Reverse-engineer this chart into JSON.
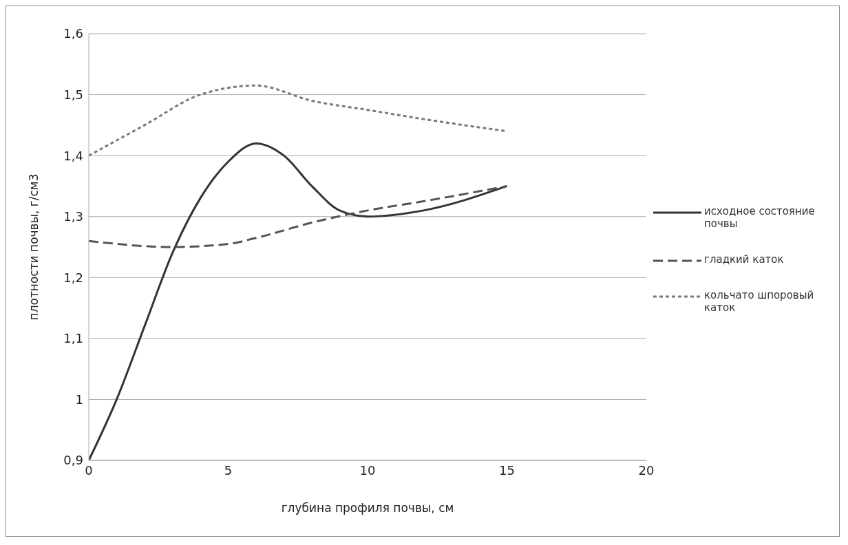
{
  "chart_data": {
    "type": "line",
    "xlabel": "глубина профиля почвы, см",
    "ylabel": "плотности почвы, г/см3",
    "xlim": [
      0,
      20
    ],
    "xticks": [
      0,
      5,
      10,
      15,
      20
    ],
    "ylim": [
      0.9,
      1.6
    ],
    "yticks": [
      {
        "value": 0.9,
        "label": "0,9"
      },
      {
        "value": 1,
        "label": "1"
      },
      {
        "value": 1.1,
        "label": "1,1"
      },
      {
        "value": 1.2,
        "label": "1,2"
      },
      {
        "value": 1.3,
        "label": "1,3"
      },
      {
        "value": 1.4,
        "label": "1,4"
      },
      {
        "value": 1.5,
        "label": "1,5"
      },
      {
        "value": 1.6,
        "label": "1,6"
      }
    ],
    "grid": "y",
    "legend": "right",
    "marker": "none",
    "series": [
      {
        "name": "исходное состояние почвы",
        "color": "#333333",
        "line_style": "solid",
        "x": [
          0,
          1,
          2,
          3,
          4,
          5,
          6,
          7,
          8,
          9,
          10,
          12,
          15
        ],
        "values": [
          0.9,
          1.0,
          1.12,
          1.24,
          1.33,
          1.39,
          1.42,
          1.4,
          1.35,
          1.31,
          1.3,
          1.31,
          1.35
        ]
      },
      {
        "name": "гладкий каток",
        "color": "#555555",
        "line_style": "dashed",
        "x": [
          0,
          3,
          5,
          6,
          8,
          10,
          12,
          15
        ],
        "values": [
          1.26,
          1.25,
          1.255,
          1.265,
          1.29,
          1.31,
          1.325,
          1.35
        ]
      },
      {
        "name": "кольчато шпоровый каток",
        "color": "#7a7a7a",
        "line_style": "dotted",
        "x": [
          0,
          2,
          4,
          6,
          8,
          10,
          12,
          15
        ],
        "values": [
          1.4,
          1.45,
          1.5,
          1.515,
          1.49,
          1.475,
          1.46,
          1.44
        ]
      }
    ]
  }
}
